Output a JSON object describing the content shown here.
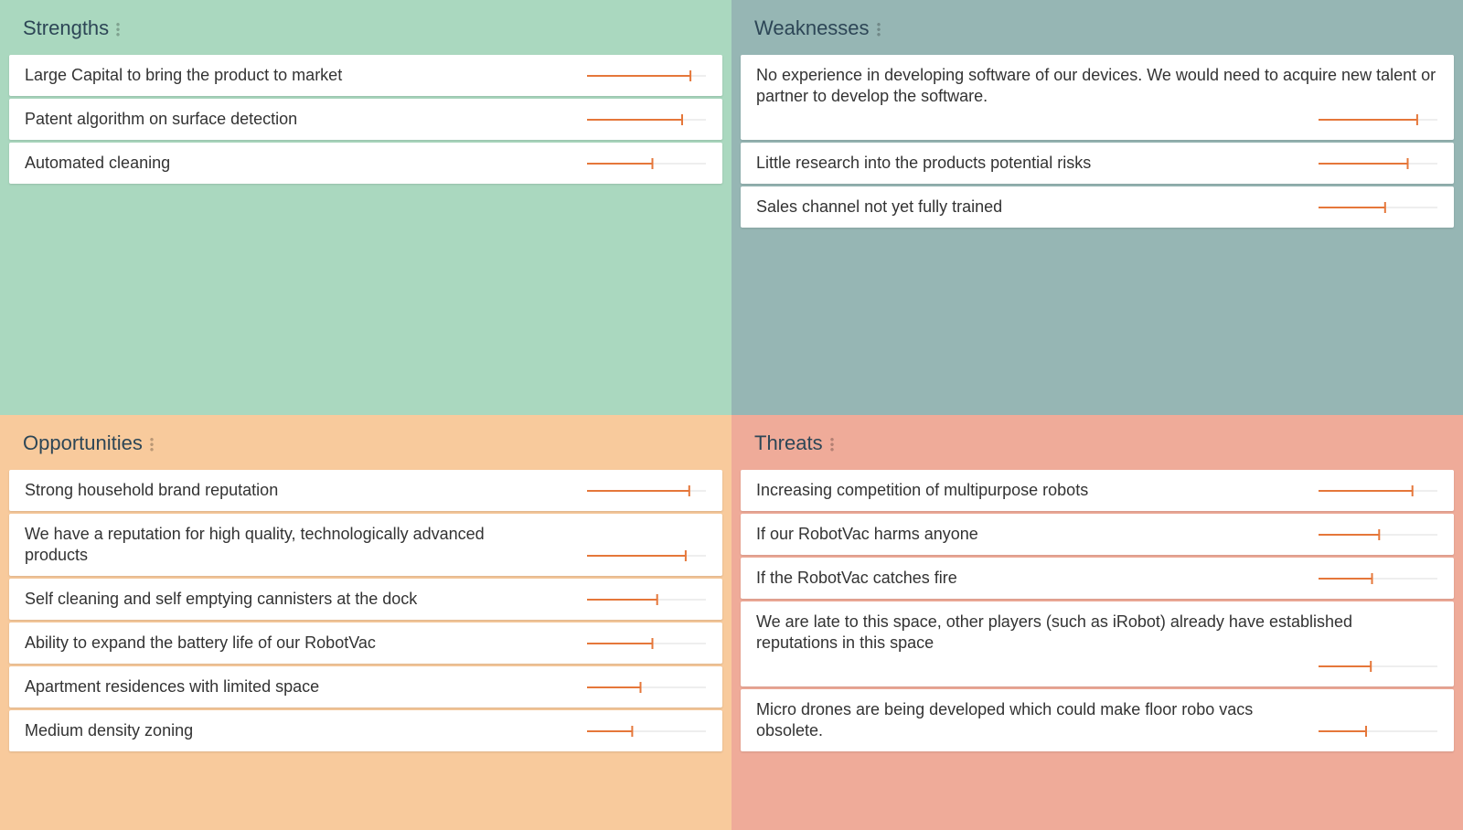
{
  "quadrants": [
    {
      "title": "Strengths",
      "color": "#aad8bf",
      "items": [
        {
          "text": "Large Capital to bring the product to market",
          "score": 87
        },
        {
          "text": "Patent algorithm on surface detection",
          "score": 80
        },
        {
          "text": "Automated cleaning",
          "score": 55
        }
      ]
    },
    {
      "title": "Weaknesses",
      "color": "#96b6b4",
      "items": [
        {
          "text": "No experience in developing software of our devices. We would need to acquire new talent or partner to develop the software.",
          "score": 83
        },
        {
          "text": "Little research into the products potential risks",
          "score": 75
        },
        {
          "text": "Sales channel not yet fully trained",
          "score": 56
        }
      ]
    },
    {
      "title": "Opportunities",
      "color": "#f8ca9c",
      "items": [
        {
          "text": "Strong household brand reputation",
          "score": 86
        },
        {
          "text": "We have a reputation for high quality, technologically advanced products",
          "score": 83
        },
        {
          "text": "Self cleaning and self emptying cannisters at the dock",
          "score": 59
        },
        {
          "text": "Ability to expand the battery life of our RobotVac",
          "score": 55
        },
        {
          "text": "Apartment residences with limited space",
          "score": 45
        },
        {
          "text": "Medium density zoning",
          "score": 38
        }
      ]
    },
    {
      "title": "Threats",
      "color": "#efab99",
      "items": [
        {
          "text": "Increasing competition of multipurpose robots",
          "score": 79
        },
        {
          "text": "If our RobotVac harms anyone",
          "score": 51
        },
        {
          "text": "If the RobotVac catches fire",
          "score": 45
        },
        {
          "text": "We are late to this space, other players (such as iRobot) already have established reputations in this space",
          "score": 44
        },
        {
          "text": "Micro drones are being developed which could make floor robo vacs obsolete.",
          "score": 40
        }
      ]
    }
  ]
}
